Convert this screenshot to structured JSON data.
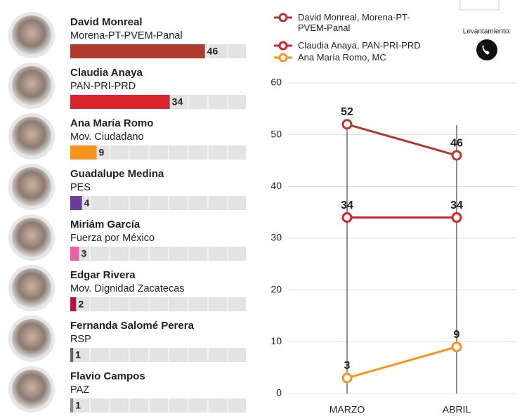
{
  "chart_data": [
    {
      "type": "bar",
      "orientation": "horizontal",
      "categories": [
        "David Monreal",
        "Claudia Anaya",
        "Ana María Romo",
        "Guadalupe Medina",
        "Miriám García",
        "Edgar Rivera",
        "Fernanda Salomé Perera",
        "Flavio Campos"
      ],
      "parties": [
        "Morena-PT-PVEM-Panal",
        "PAN-PRI-PRD",
        "Mov. Ciudadano",
        "PES",
        "Fuerza por México",
        "Mov. Dignidad Zacatecas",
        "RSP",
        "PAZ"
      ],
      "values": [
        46,
        34,
        9,
        4,
        3,
        2,
        1,
        1
      ],
      "colors": [
        "#b03a2e",
        "#d9232a",
        "#f7941d",
        "#6a3d9a",
        "#ee5fa7",
        "#b5123f",
        "#666666",
        "#888888"
      ],
      "xlim": [
        0,
        60
      ]
    },
    {
      "type": "line",
      "categories": [
        "MARZO",
        "ABRIL"
      ],
      "series": [
        {
          "name": "David Monreal, Morena-PT-PVEM-Panal",
          "color": "#b03a2e",
          "values": [
            52,
            46
          ]
        },
        {
          "name": "Claudia Anaya, PAN-PRI-PRD",
          "color": "#d9232a",
          "values": [
            34,
            34
          ]
        },
        {
          "name": "Ana María Romo, MC",
          "color": "#f7941d",
          "values": [
            3,
            9
          ]
        }
      ],
      "ylim": [
        0,
        60
      ],
      "yticks": [
        0,
        10,
        20,
        30,
        40,
        50,
        60
      ],
      "grid": true,
      "note": "Levantamiento:"
    }
  ]
}
